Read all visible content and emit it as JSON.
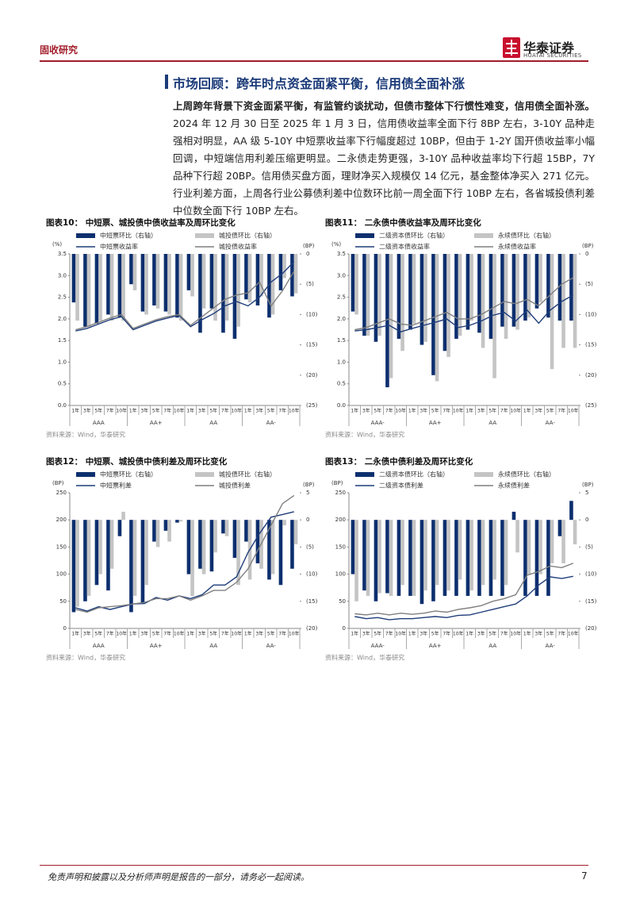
{
  "header": {
    "section": "固收研究",
    "logo": "华泰证券",
    "logo_en": "HUATAI SECURITIES"
  },
  "heading": "市场回顾：跨年时点资金面紧平衡，信用债全面补涨",
  "paragraph": {
    "lead": "上周跨年背景下资金面紧平衡，有监管约谈扰动，但债市整体下行惯性难变，信用债全面补涨。",
    "body": "2024 年 12 月 30 日至 2025 年 1 月 3 日，信用债收益率全面下行 8BP 左右，3-10Y 品种走强相对明显，AA 级 5-10Y 中短票收益率下行幅度超过 10BP，但由于 1-2Y 国开债收益率小幅回调，中短端信用利差压缩更明显。二永债走势更强，3-10Y 品种收益率均下行超 15BP，7Y 品种下行超 20BP。信用债买盘方面，理财净买入规模仅 14 亿元，基金整体净买入 271 亿元。行业利差方面，上周各行业公募债利差中位数环比前一周全面下行 10BP 左右，各省城投债利差中位数全面下行 10BP 左右。"
  },
  "footer": {
    "disclaimer": "免责声明和披露以及分析师声明是报告的一部分，请务必一起阅读。",
    "page": "7"
  },
  "chart_data": [
    {
      "type": "bar-line",
      "title": "图表10：  中短票、城投债中债收益率及周环比变化",
      "source": "资料来源：Wind，华泰研究",
      "y_unit": "(%)",
      "y2_unit": "(BP)",
      "categories": [
        "1年",
        "3年",
        "5年",
        "7年",
        "10年",
        "1年",
        "3年",
        "5年",
        "7年",
        "10年",
        "1年",
        "3年",
        "5年",
        "7年",
        "10年",
        "1年",
        "3年",
        "5年",
        "7年",
        "10年"
      ],
      "groups": [
        "AAA",
        "AA+",
        "AA",
        "AA-"
      ],
      "ylim": [
        0,
        3.5
      ],
      "yticks": [
        {
          "value": 0,
          "label": "0.0"
        },
        0.5,
        {
          "value": 1,
          "label": "1.0"
        },
        1.5,
        {
          "value": 2,
          "label": "2.0"
        },
        2.5,
        {
          "value": 3,
          "label": "3.0"
        },
        3.5
      ],
      "y2lim": [
        -25,
        0
      ],
      "y2ticks": [
        {
          "value": -25,
          "label": "(25)"
        },
        {
          "value": -20,
          "label": "(20)"
        },
        {
          "value": -15,
          "label": "(15)"
        },
        {
          "value": -10,
          "label": "(10)"
        },
        {
          "value": -5,
          "label": "(5)"
        },
        0
      ],
      "series": [
        {
          "name": "中短票环比（右轴）",
          "type": "bar",
          "axis": "y2",
          "color": "#0d2f6e",
          "values": [
            -8,
            -12,
            -11.5,
            -10,
            -10.5,
            -5,
            -9.5,
            -8.5,
            -9.5,
            -10.5,
            -6,
            -13,
            -9,
            -13,
            -14,
            -7.5,
            -8.5,
            -10.5,
            -6,
            -7
          ]
        },
        {
          "name": "城投债环比（右轴）",
          "type": "bar",
          "axis": "y2",
          "color": "#c4c4c4",
          "values": [
            -11,
            -12,
            -11,
            -11,
            -11,
            -6,
            -10,
            -9,
            -10,
            -11,
            -7,
            -9,
            -11,
            -11,
            -12,
            -8,
            -7,
            -10,
            -4,
            -6.5
          ]
        },
        {
          "name": "中短票收益率",
          "type": "line",
          "color": "#1f3d7a",
          "values": [
            1.72,
            1.78,
            1.88,
            1.98,
            2.05,
            1.75,
            1.85,
            1.95,
            2.02,
            2.08,
            1.82,
            1.98,
            2.12,
            2.3,
            2.4,
            2.3,
            2.5,
            2.85,
            3.05,
            3.32
          ]
        },
        {
          "name": "城投债收益率",
          "type": "line",
          "color": "#7f7f7f",
          "values": [
            1.75,
            1.82,
            1.92,
            2.02,
            2.1,
            1.78,
            1.88,
            1.98,
            2.05,
            2.1,
            1.85,
            2.05,
            2.25,
            2.45,
            2.55,
            2.6,
            2.85,
            2.3,
            2.65,
            3.1
          ]
        }
      ]
    },
    {
      "type": "bar-line",
      "title": "图表11：  二永债中债收益率及周环比变化",
      "source": "资料来源：Wind，华泰研究",
      "y_unit": "(%)",
      "y2_unit": "(BP)",
      "categories": [
        "1年",
        "3年",
        "5年",
        "7年",
        "10年",
        "1年",
        "3年",
        "5年",
        "7年",
        "10年",
        "1年",
        "3年",
        "5年",
        "7年",
        "10年",
        "1年",
        "3年",
        "5年",
        "7年",
        "10年"
      ],
      "groups": [
        "AAA-",
        "AA+",
        "AA",
        "AA-"
      ],
      "ylim": [
        0,
        3.5
      ],
      "yticks": [
        {
          "value": 0,
          "label": "0.0"
        },
        0.5,
        {
          "value": 1,
          "label": "1.0"
        },
        1.5,
        {
          "value": 2,
          "label": "2.0"
        },
        2.5,
        {
          "value": 3,
          "label": "3.0"
        },
        3.5
      ],
      "y2lim": [
        -25,
        0
      ],
      "y2ticks": [
        {
          "value": -25,
          "label": "(25)"
        },
        {
          "value": -20,
          "label": "(20)"
        },
        {
          "value": -15,
          "label": "(15)"
        },
        {
          "value": -10,
          "label": "(10)"
        },
        {
          "value": -5,
          "label": "(5)"
        },
        0
      ],
      "series": [
        {
          "name": "二级资本债环比（右轴）",
          "type": "bar",
          "axis": "y2",
          "color": "#0d2f6e",
          "values": [
            -9.5,
            -13.5,
            -14.5,
            -22,
            -14,
            -12.5,
            -15,
            -20,
            -16,
            -14,
            -12.5,
            -13,
            -14,
            -12,
            -12,
            -11,
            -9,
            -10.5,
            -11,
            -11
          ]
        },
        {
          "name": "永续债环比（右轴）",
          "type": "bar",
          "axis": "y2",
          "color": "#c4c4c4",
          "values": [
            -10,
            -13.5,
            -13.5,
            -20.5,
            -16,
            -11.5,
            -14.5,
            -21,
            -17,
            -13.5,
            -11,
            -15.5,
            -20.5,
            -14,
            -12.5,
            -10.5,
            -8,
            -19,
            -15.5,
            -15.5
          ]
        },
        {
          "name": "二级资本债收益率",
          "type": "line",
          "color": "#1f3d7a",
          "values": [
            1.72,
            1.75,
            1.8,
            1.85,
            1.7,
            1.78,
            1.85,
            1.92,
            2.0,
            1.8,
            1.85,
            1.95,
            2.08,
            2.15,
            1.95,
            2.2,
            1.9,
            2.2,
            2.4,
            2.55
          ]
        },
        {
          "name": "永续债收益率",
          "type": "line",
          "color": "#7f7f7f",
          "values": [
            1.75,
            1.8,
            1.9,
            2.0,
            1.88,
            1.85,
            1.95,
            2.05,
            2.15,
            2.0,
            2.0,
            2.1,
            2.25,
            2.4,
            2.35,
            2.45,
            2.3,
            2.55,
            2.8,
            2.95
          ]
        }
      ]
    },
    {
      "type": "bar-line",
      "title": "图表12：  中短票、城投债中债利差及周环比变化",
      "source": "资料来源：Wind，华泰研究",
      "y_unit": "(BP)",
      "y2_unit": "(BP)",
      "categories": [
        "1年",
        "3年",
        "5年",
        "7年",
        "10年",
        "1年",
        "3年",
        "5年",
        "7年",
        "10年",
        "1年",
        "3年",
        "5年",
        "7年",
        "10年",
        "1年",
        "3年",
        "5年",
        "7年",
        "10年"
      ],
      "groups": [
        "AAA",
        "AA+",
        "AA",
        "AA-"
      ],
      "ylim": [
        0,
        250
      ],
      "yticks": [
        0,
        50,
        100,
        150,
        200,
        250
      ],
      "y2lim": [
        -20,
        5
      ],
      "y2ticks": [
        {
          "value": -20,
          "label": "(20)"
        },
        {
          "value": -15,
          "label": "(15)"
        },
        {
          "value": -10,
          "label": "(10)"
        },
        {
          "value": -5,
          "label": "(5)"
        },
        0,
        5
      ],
      "series": [
        {
          "name": "中短票环比（右轴）",
          "type": "bar",
          "axis": "y2",
          "color": "#0d2f6e",
          "values": [
            -17,
            -15,
            -12,
            -13,
            -3,
            -17,
            -15.5,
            -4,
            -2,
            -0.5,
            -10,
            -9,
            -9.5,
            -2.5,
            -7,
            -4,
            -8,
            -11,
            -12,
            -9
          ]
        },
        {
          "name": "城投债环比（右轴）",
          "type": "bar",
          "axis": "y2",
          "color": "#c4c4c4",
          "values": [
            -16,
            -14,
            -10,
            -9,
            1.5,
            -14,
            -12,
            -5,
            -4,
            -0.3,
            -14,
            -10,
            -6,
            -3,
            -12,
            -11,
            -9,
            -10,
            -1,
            -4.5
          ]
        },
        {
          "name": "中短票利差",
          "type": "line",
          "color": "#1f3d7a",
          "values": [
            38,
            32,
            40,
            35,
            40,
            45,
            46,
            57,
            52,
            60,
            55,
            62,
            80,
            80,
            95,
            140,
            175,
            205,
            210,
            215
          ]
        },
        {
          "name": "城投债利差",
          "type": "line",
          "color": "#7f7f7f",
          "values": [
            35,
            30,
            38,
            40,
            42,
            45,
            48,
            55,
            55,
            60,
            52,
            60,
            70,
            70,
            85,
            110,
            150,
            190,
            230,
            245
          ]
        }
      ]
    },
    {
      "type": "bar-line",
      "title": "图表13：  二永债中债利差及周环比变化",
      "source": "资料来源：Wind，华泰研究",
      "y_unit": "(BP)",
      "y2_unit": "(BP)",
      "categories": [
        "1年",
        "3年",
        "5年",
        "7年",
        "10年",
        "1年",
        "3年",
        "5年",
        "7年",
        "10年",
        "1年",
        "3年",
        "5年",
        "7年",
        "10年",
        "1年",
        "3年",
        "5年",
        "7年",
        "10年"
      ],
      "groups": [
        "AAA-",
        "AA+",
        "AA",
        "AA-"
      ],
      "ylim": [
        0,
        250
      ],
      "yticks": [
        0,
        50,
        100,
        150,
        200,
        250
      ],
      "y2lim": [
        -20,
        5
      ],
      "y2ticks": [
        {
          "value": -20,
          "label": "(20)"
        },
        {
          "value": -15,
          "label": "(15)"
        },
        {
          "value": -10,
          "label": "(10)"
        },
        {
          "value": -5,
          "label": "(5)"
        },
        0,
        5
      ],
      "series": [
        {
          "name": "二级资本债环比（右轴）",
          "type": "bar",
          "axis": "y2",
          "color": "#0d2f6e",
          "values": [
            -10,
            -13,
            -15,
            -13.5,
            -14,
            -14,
            -15.5,
            -15,
            -14,
            -14,
            -14,
            -14,
            -14,
            -14,
            1.5,
            -14,
            -14,
            -14,
            -3,
            3.5
          ]
        },
        {
          "name": "永续债环比（右轴）",
          "type": "bar",
          "axis": "y2",
          "color": "#c4c4c4",
          "values": [
            -15,
            -14,
            -13.5,
            -14,
            -12,
            -14,
            -13,
            -12,
            -13,
            -11,
            -13,
            -12,
            -11,
            -12,
            -6,
            -10,
            -10,
            -8,
            -8,
            -4.5
          ]
        },
        {
          "name": "二级资本债利差",
          "type": "line",
          "color": "#1f3d7a",
          "values": [
            22,
            18,
            20,
            16,
            18,
            18,
            20,
            22,
            20,
            24,
            25,
            30,
            35,
            40,
            45,
            60,
            80,
            95,
            92,
            96
          ]
        },
        {
          "name": "永续债利差",
          "type": "line",
          "color": "#7f7f7f",
          "values": [
            27,
            25,
            28,
            25,
            28,
            26,
            28,
            32,
            30,
            35,
            38,
            42,
            50,
            55,
            62,
            98,
            105,
            115,
            112,
            120
          ]
        }
      ]
    }
  ]
}
